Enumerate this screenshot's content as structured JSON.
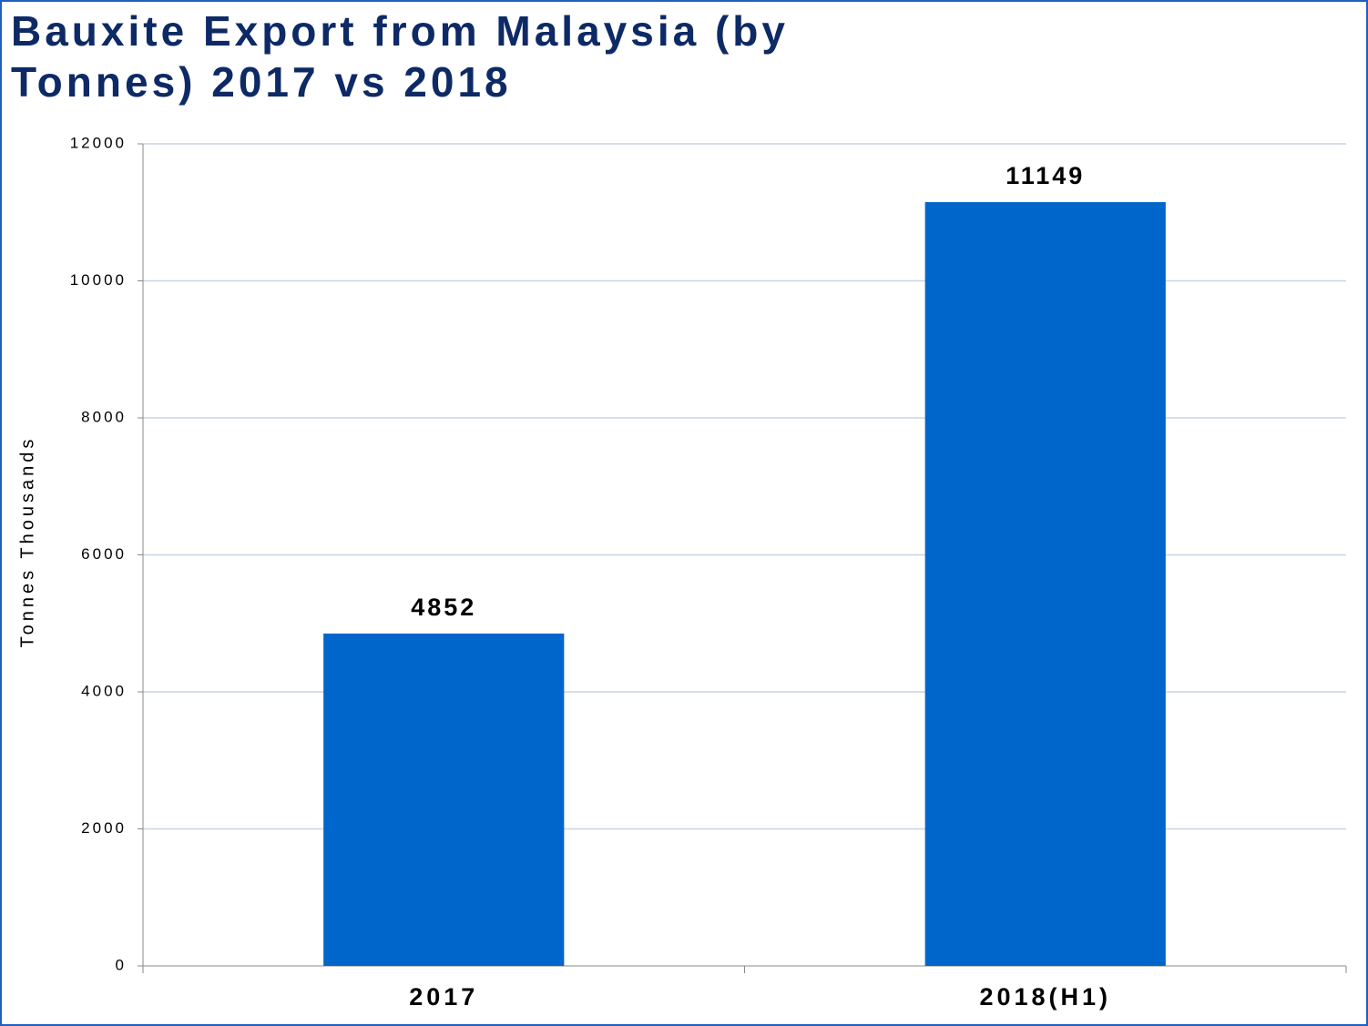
{
  "chart_data": {
    "type": "bar",
    "title": "Bauxite Export from Malaysia (by Tonnes) 2017 vs 2018",
    "y_label": "Tonnes Thousands",
    "categories": [
      "2017",
      "2018(H1)"
    ],
    "values": [
      4852,
      11149
    ],
    "color": "#0066cc",
    "ylim": [
      0,
      12000
    ],
    "yticks": [
      0,
      2000,
      4000,
      6000,
      8000,
      10000,
      12000
    ],
    "grid": true
  }
}
